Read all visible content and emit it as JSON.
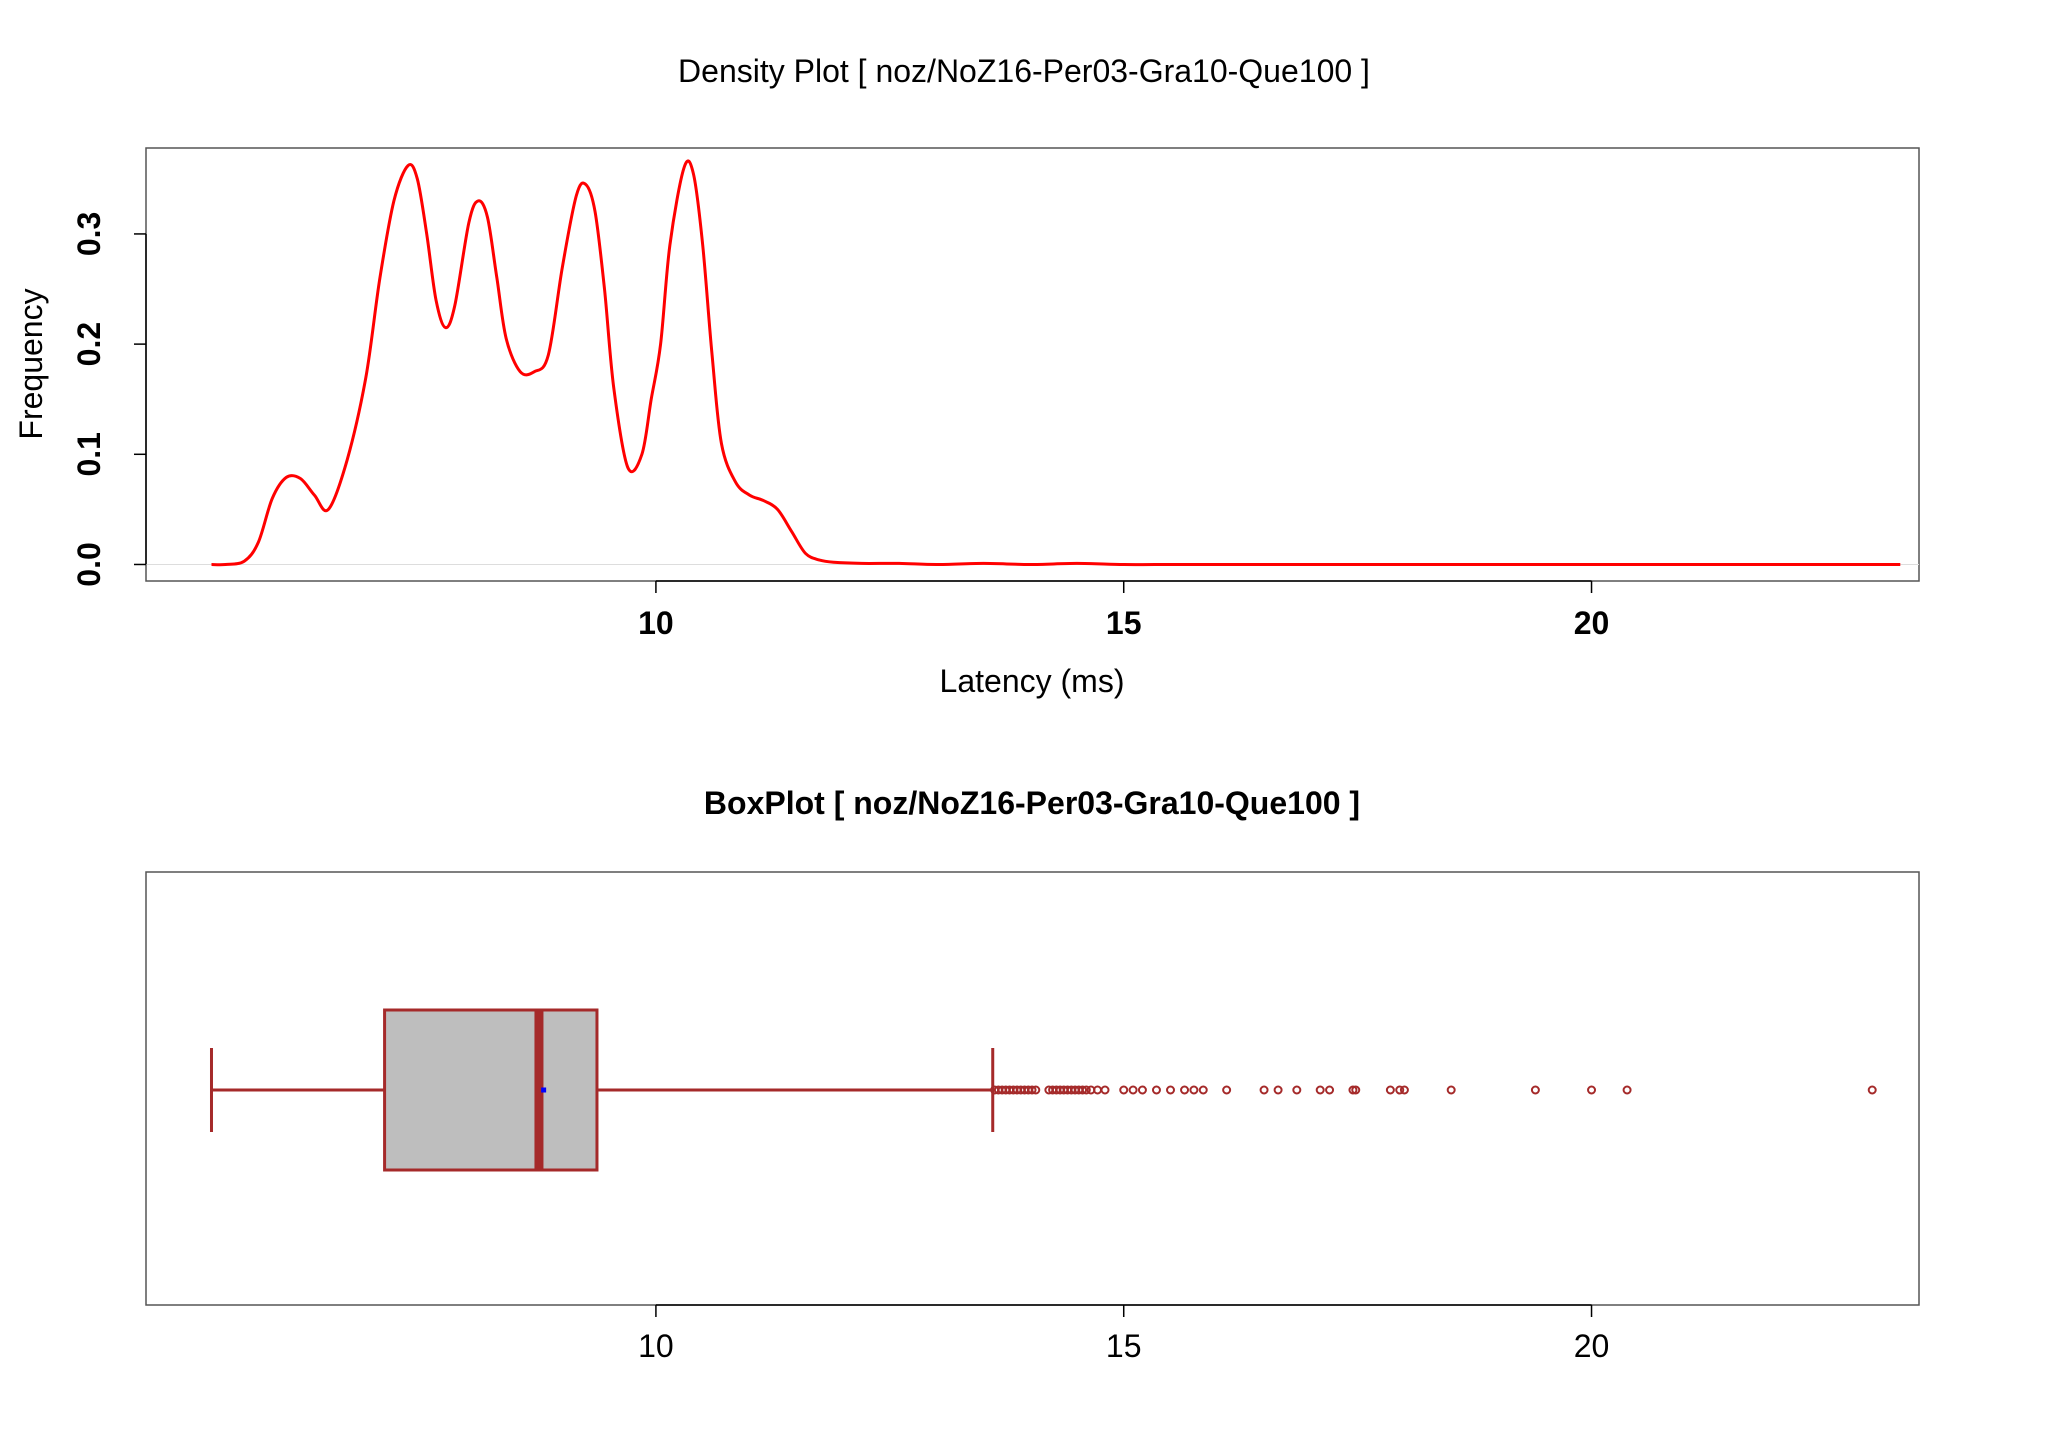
{
  "chart_data": [
    {
      "type": "line",
      "title": "Density Plot [ noz/NoZ16-Per03-Gra10-Que100 ]",
      "xlabel": "Latency (ms)",
      "ylabel": "Frequency",
      "xlim": [
        4.55,
        23.5
      ],
      "ylim": [
        -0.015,
        0.378
      ],
      "x_ticks": [
        10,
        15,
        20
      ],
      "x_tick_labels": [
        "10",
        "15",
        "20"
      ],
      "y_ticks": [
        0.0,
        0.1,
        0.2,
        0.3
      ],
      "y_tick_labels": [
        "0.0",
        "0.1",
        "0.2",
        "0.3"
      ],
      "line_color": "#ff0000",
      "grid": false,
      "series": [
        {
          "x": [
            5.25,
            5.4,
            5.6,
            5.75,
            5.9,
            6.05,
            6.2,
            6.35,
            6.5,
            6.7,
            6.9,
            7.05,
            7.2,
            7.35,
            7.45,
            7.55,
            7.65,
            7.75,
            7.85,
            8.0,
            8.1,
            8.2,
            8.3,
            8.4,
            8.55,
            8.7,
            8.85,
            9.0,
            9.15,
            9.25,
            9.35,
            9.45,
            9.55,
            9.7,
            9.85,
            9.95,
            10.05,
            10.15,
            10.3,
            10.4,
            10.5,
            10.6,
            10.7,
            10.85,
            11.0,
            11.15,
            11.3,
            11.45,
            11.6,
            11.75,
            11.9,
            12.2,
            12.6,
            13.0,
            13.5,
            14.0,
            14.5,
            15.0,
            15.5,
            16.0,
            17.0,
            18.0,
            19.0,
            20.0,
            21.0,
            22.0,
            22.8,
            23.3
          ],
          "y": [
            0.0,
            0.0,
            0.003,
            0.02,
            0.06,
            0.079,
            0.078,
            0.063,
            0.05,
            0.095,
            0.17,
            0.26,
            0.33,
            0.362,
            0.35,
            0.3,
            0.24,
            0.215,
            0.235,
            0.31,
            0.33,
            0.315,
            0.26,
            0.205,
            0.175,
            0.175,
            0.19,
            0.27,
            0.335,
            0.345,
            0.32,
            0.25,
            0.16,
            0.088,
            0.1,
            0.15,
            0.2,
            0.29,
            0.36,
            0.355,
            0.29,
            0.19,
            0.11,
            0.075,
            0.063,
            0.058,
            0.05,
            0.03,
            0.01,
            0.004,
            0.002,
            0.001,
            0.001,
            0.0,
            0.001,
            0.0,
            0.001,
            0.0,
            0.0,
            0.0,
            0.0,
            0.0,
            0.0,
            0.0,
            0.0,
            0.0,
            0.0,
            0.0
          ]
        }
      ]
    },
    {
      "type": "box",
      "title": "BoxPlot [ noz/NoZ16-Per03-Gra10-Que100 ]",
      "xlim": [
        4.55,
        23.5
      ],
      "x_ticks": [
        10,
        15,
        20
      ],
      "x_tick_labels": [
        "10",
        "15",
        "20"
      ],
      "box_fill": "#bebebe",
      "box_color": "#a52a2a",
      "mean_color": "#0000ff",
      "whisker_low": 5.25,
      "q1": 7.1,
      "median": 8.75,
      "mean": 8.8,
      "q3": 9.37,
      "whisker_high": 13.6,
      "outliers": [
        13.62,
        13.66,
        13.7,
        13.74,
        13.78,
        13.82,
        13.86,
        13.9,
        13.94,
        13.98,
        14.02,
        14.06,
        14.2,
        14.24,
        14.28,
        14.32,
        14.36,
        14.4,
        14.44,
        14.48,
        14.52,
        14.56,
        14.6,
        14.65,
        14.72,
        14.8,
        15.0,
        15.1,
        15.2,
        15.35,
        15.5,
        15.65,
        15.75,
        15.85,
        16.1,
        16.5,
        16.65,
        16.85,
        17.1,
        17.2,
        17.45,
        17.48,
        17.85,
        17.95,
        18.0,
        18.5,
        19.4,
        20.0,
        20.38,
        23.0
      ]
    }
  ]
}
